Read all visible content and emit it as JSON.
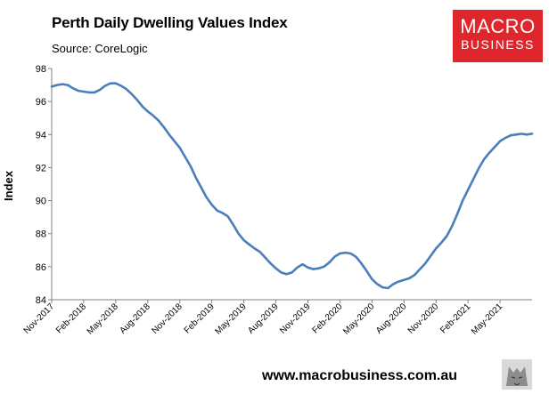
{
  "header": {
    "title": "Perth Daily Dwelling Values Index",
    "source": "Source: CoreLogic"
  },
  "logo": {
    "line1": "MACRO",
    "line2": "BUSINESS",
    "color": "#e0262d"
  },
  "footer": {
    "url": "www.macrobusiness.com.au"
  },
  "colors": {
    "series": "#4a7ebb",
    "axis": "#808080"
  },
  "chart_data": {
    "type": "line",
    "title": "Perth Daily Dwelling Values Index",
    "xlabel": "",
    "ylabel": "Index",
    "ylim": [
      84,
      98
    ],
    "yticks": [
      84,
      86,
      88,
      90,
      92,
      94,
      96,
      98
    ],
    "grid": false,
    "legend": "none",
    "x_start": "2017-11",
    "x_end": "2021-08",
    "x_tick_labels": [
      "Nov-2017",
      "Feb-2018",
      "May-2018",
      "Aug-2018",
      "Nov-2018",
      "Feb-2019",
      "May-2019",
      "Aug-2019",
      "Nov-2019",
      "Feb-2020",
      "May-2020",
      "Aug-2020",
      "Nov-2020",
      "Feb-2021",
      "May-2021"
    ],
    "series": [
      {
        "name": "Perth Daily Dwelling Values Index",
        "x": [
          0,
          0.5,
          1,
          1.5,
          2,
          2.5,
          3,
          3.5,
          4,
          4.5,
          5,
          5.5,
          6,
          6.5,
          7,
          7.5,
          8,
          8.5,
          9,
          9.5,
          10,
          10.5,
          11,
          11.5,
          12,
          12.5,
          13,
          13.5,
          14,
          14.5,
          15,
          15.5,
          16,
          16.5,
          17,
          17.5,
          18,
          18.5,
          19,
          19.5,
          20,
          20.5,
          21,
          21.5,
          22,
          22.5,
          23,
          23.5,
          24,
          24.5,
          25,
          25.5,
          26,
          26.5,
          27,
          27.5,
          28,
          28.5,
          29,
          29.5,
          30,
          30.5,
          31,
          31.5,
          32,
          32.5,
          33,
          33.5,
          34,
          34.5,
          35,
          35.5,
          36,
          36.5,
          37,
          37.5,
          38,
          38.5,
          39,
          39.5,
          40,
          40.5,
          41,
          41.5,
          42,
          42.5,
          43,
          43.5,
          44,
          44.5,
          45
        ],
        "values": [
          96.9,
          97.0,
          97.05,
          97.0,
          96.8,
          96.65,
          96.6,
          96.55,
          96.55,
          96.7,
          96.95,
          97.1,
          97.1,
          96.95,
          96.75,
          96.45,
          96.1,
          95.7,
          95.4,
          95.15,
          94.85,
          94.45,
          94.0,
          93.6,
          93.2,
          92.65,
          92.1,
          91.4,
          90.8,
          90.2,
          89.75,
          89.4,
          89.25,
          89.05,
          88.55,
          88.0,
          87.6,
          87.35,
          87.1,
          86.9,
          86.55,
          86.2,
          85.9,
          85.65,
          85.55,
          85.65,
          85.95,
          86.15,
          85.95,
          85.85,
          85.9,
          86.0,
          86.25,
          86.6,
          86.8,
          86.85,
          86.8,
          86.6,
          86.2,
          85.75,
          85.25,
          84.95,
          84.75,
          84.7,
          84.95,
          85.1,
          85.2,
          85.3,
          85.5,
          85.85,
          86.2,
          86.65,
          87.1,
          87.45,
          87.85,
          88.45,
          89.2,
          90.0,
          90.65,
          91.3,
          91.95,
          92.5,
          92.9,
          93.25,
          93.6,
          93.8,
          93.95,
          94.0,
          94.05,
          94.0,
          94.05
        ]
      }
    ]
  }
}
